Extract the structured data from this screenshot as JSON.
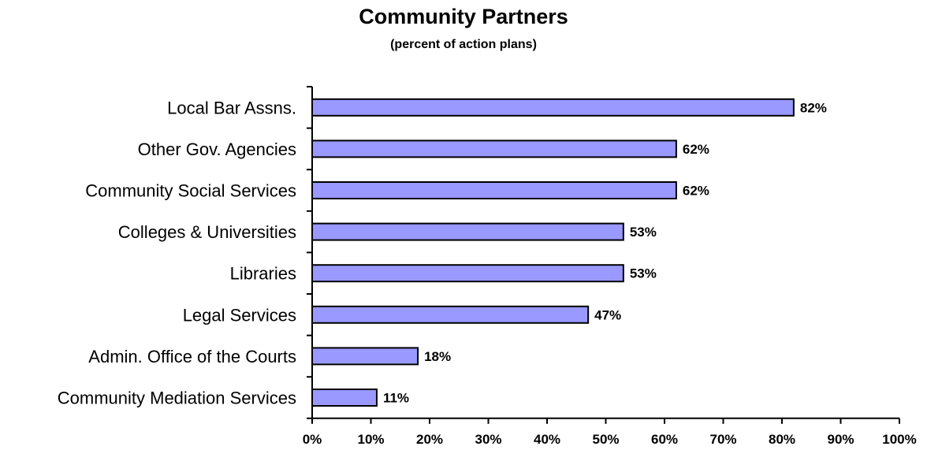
{
  "chart_data": {
    "type": "bar",
    "orientation": "horizontal",
    "title": "Community Partners",
    "subtitle": "(percent of action plans)",
    "categories": [
      "Local Bar Assns.",
      "Other Gov. Agencies",
      "Community Social Services",
      "Colleges & Universities",
      "Libraries",
      "Legal Services",
      "Admin. Office of the Courts",
      "Community Mediation Services"
    ],
    "values": [
      82,
      62,
      62,
      53,
      53,
      47,
      18,
      11
    ],
    "value_labels": [
      "82%",
      "62%",
      "62%",
      "53%",
      "53%",
      "47%",
      "18%",
      "11%"
    ],
    "xlim": [
      0,
      100
    ],
    "x_ticks": [
      0,
      10,
      20,
      30,
      40,
      50,
      60,
      70,
      80,
      90,
      100
    ],
    "x_tick_labels": [
      "0%",
      "10%",
      "20%",
      "30%",
      "40%",
      "50%",
      "60%",
      "70%",
      "80%",
      "90%",
      "100%"
    ],
    "grid": false,
    "legend": "none",
    "bar_color": "#9999ff",
    "bar_edge_color": "#000000"
  }
}
